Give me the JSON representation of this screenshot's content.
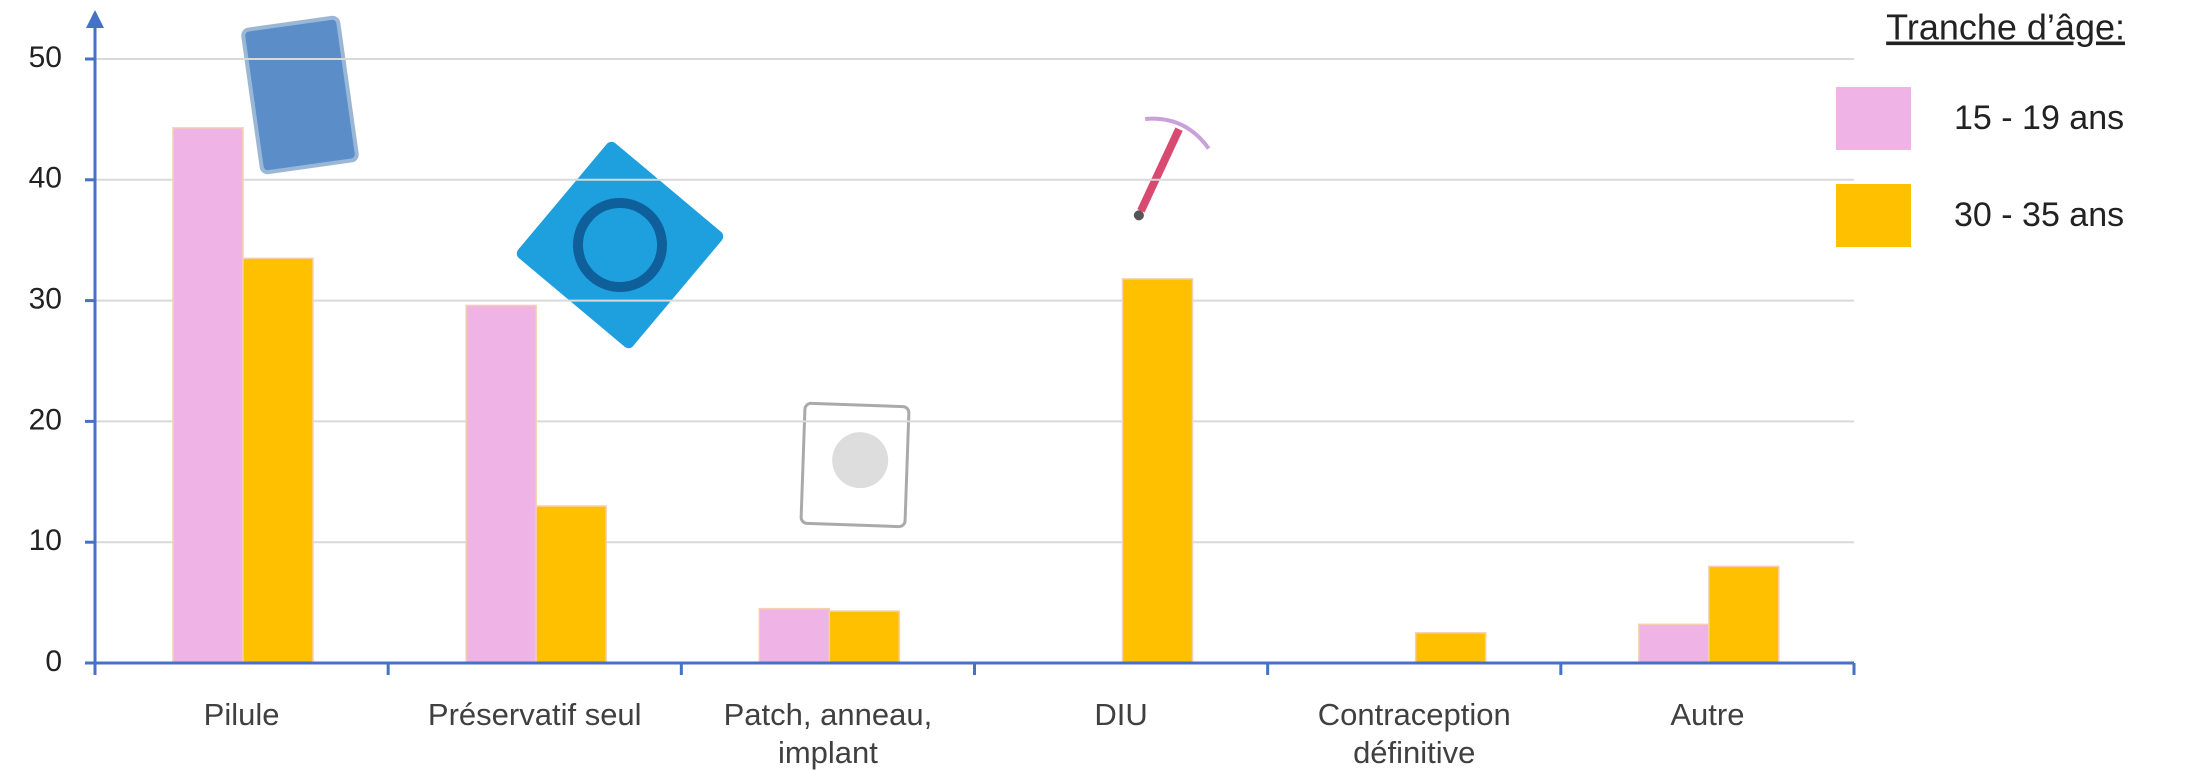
{
  "chart_data": {
    "type": "bar",
    "categories": [
      "Pilule",
      "Préservatif seul",
      "Patch, anneau, implant",
      "DIU",
      "Contraception définitive",
      "Autre"
    ],
    "series": [
      {
        "name": "15 - 19 ans",
        "color": "#f0b3e6",
        "values": [
          44.3,
          29.6,
          4.5,
          0,
          0,
          3.2
        ]
      },
      {
        "name": "30 - 35 ans",
        "color": "#ffc000",
        "values": [
          33.5,
          13,
          4.3,
          31.8,
          2.5,
          8
        ]
      }
    ],
    "ylim": [
      0,
      50
    ],
    "yticks": [
      0,
      10,
      20,
      30,
      40,
      50
    ],
    "grid": true,
    "legend_title": "Tranche d’âge:",
    "legend_position": "top-right"
  }
}
